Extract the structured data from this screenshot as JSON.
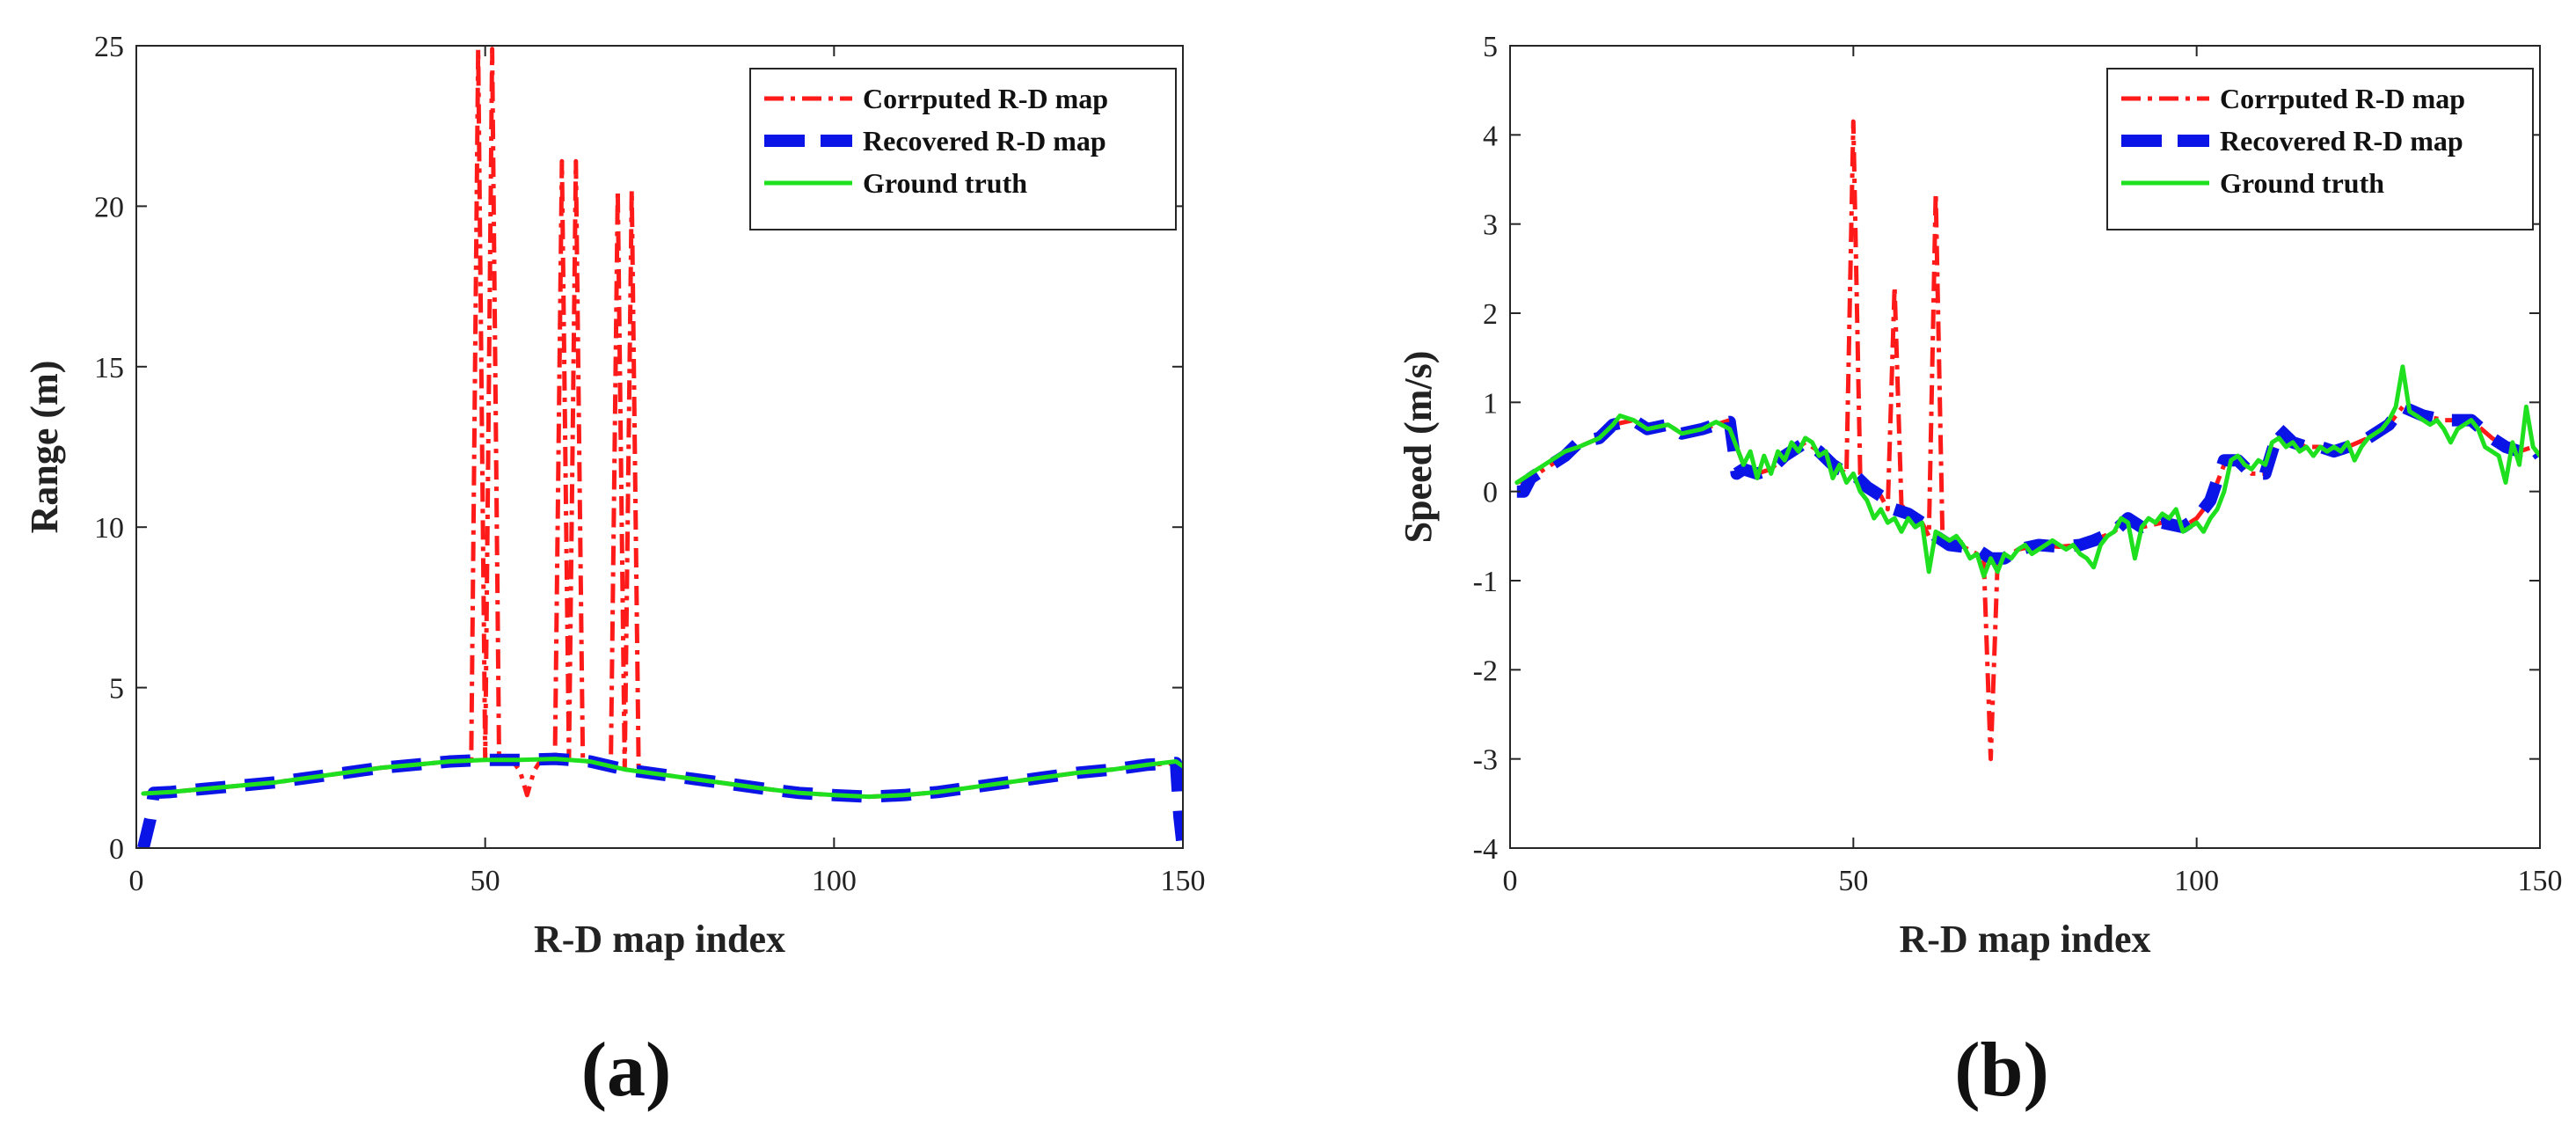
{
  "chart_data": [
    {
      "type": "line",
      "panel_label": "(a)",
      "xlabel": "R-D map index",
      "ylabel": "Range (m)",
      "xlim": [
        0,
        150
      ],
      "ylim": [
        0,
        25
      ],
      "xticks": [
        0,
        50,
        100,
        150
      ],
      "yticks": [
        0,
        5,
        10,
        15,
        20,
        25
      ],
      "legend_position": "top-right",
      "series": [
        {
          "name": "Corrputed R-D map",
          "color": "#ff1a1a",
          "style": "dash-dot",
          "x": [
            1,
            5,
            10,
            15,
            20,
            25,
            30,
            35,
            40,
            45,
            48,
            49,
            50,
            51,
            52,
            54,
            55,
            56,
            57,
            58,
            60,
            61,
            62,
            63,
            64,
            66,
            68,
            69,
            70,
            71,
            72,
            75,
            80,
            85,
            90,
            95,
            100,
            105,
            110,
            115,
            120,
            125,
            130,
            135,
            140,
            145,
            149,
            150
          ],
          "y": [
            1.7,
            1.75,
            1.85,
            1.95,
            2.05,
            2.2,
            2.35,
            2.5,
            2.6,
            2.7,
            2.72,
            24.9,
            2.75,
            24.9,
            2.75,
            2.7,
            2.4,
            1.65,
            2.4,
            2.75,
            2.78,
            21.4,
            2.78,
            21.4,
            2.75,
            2.6,
            2.5,
            20.5,
            2.45,
            20.5,
            2.4,
            2.3,
            2.15,
            2.0,
            1.85,
            1.72,
            1.65,
            1.6,
            1.65,
            1.75,
            1.9,
            2.05,
            2.2,
            2.35,
            2.45,
            2.6,
            2.65,
            2.5
          ]
        },
        {
          "name": "Recovered R-D map",
          "color": "#0a14e6",
          "style": "dashed-thick",
          "x": [
            1,
            2,
            2.5,
            5,
            10,
            15,
            20,
            25,
            30,
            35,
            40,
            45,
            50,
            55,
            60,
            65,
            70,
            75,
            80,
            85,
            90,
            95,
            100,
            105,
            110,
            115,
            120,
            125,
            130,
            135,
            140,
            145,
            149,
            149.5,
            150
          ],
          "y": [
            0,
            0.9,
            1.72,
            1.75,
            1.85,
            1.95,
            2.05,
            2.2,
            2.35,
            2.5,
            2.6,
            2.7,
            2.75,
            2.75,
            2.78,
            2.7,
            2.45,
            2.3,
            2.15,
            2.0,
            1.85,
            1.72,
            1.65,
            1.6,
            1.65,
            1.75,
            1.9,
            2.05,
            2.2,
            2.35,
            2.45,
            2.6,
            2.65,
            1.0,
            0
          ]
        },
        {
          "name": "Ground truth",
          "color": "#1fe01f",
          "style": "solid",
          "x": [
            1,
            5,
            10,
            15,
            20,
            25,
            30,
            35,
            40,
            45,
            50,
            55,
            60,
            65,
            70,
            75,
            80,
            85,
            90,
            95,
            100,
            105,
            110,
            115,
            120,
            125,
            130,
            135,
            140,
            145,
            149,
            150
          ],
          "y": [
            1.7,
            1.75,
            1.85,
            1.95,
            2.05,
            2.2,
            2.35,
            2.5,
            2.6,
            2.7,
            2.75,
            2.75,
            2.78,
            2.7,
            2.45,
            2.3,
            2.15,
            2.0,
            1.85,
            1.72,
            1.65,
            1.6,
            1.65,
            1.75,
            1.9,
            2.05,
            2.2,
            2.35,
            2.45,
            2.6,
            2.7,
            2.55
          ]
        }
      ]
    },
    {
      "type": "line",
      "panel_label": "(b)",
      "xlabel": "R-D map index",
      "ylabel": "Speed (m/s)",
      "xlim": [
        0,
        150
      ],
      "ylim": [
        -4,
        5
      ],
      "xticks": [
        0,
        50,
        100,
        150
      ],
      "yticks": [
        -4,
        -3,
        -2,
        -1,
        0,
        1,
        2,
        3,
        4,
        5
      ],
      "legend_position": "top-right",
      "series": [
        {
          "name": "Corrputed R-D map",
          "color": "#ff1a1a",
          "style": "dash-dot",
          "x": [
            1,
            3,
            5,
            8,
            10,
            13,
            15,
            18,
            20,
            23,
            25,
            28,
            30,
            32,
            33,
            34,
            36,
            38,
            40,
            43,
            45,
            47,
            48,
            49,
            50,
            51,
            52,
            54,
            55,
            56,
            57,
            58,
            60,
            61,
            62,
            63,
            64,
            66,
            68,
            69,
            70,
            71,
            72,
            74,
            77,
            80,
            83,
            85,
            88,
            90,
            92,
            95,
            98,
            100,
            102,
            104,
            106,
            108,
            110,
            112,
            114,
            116,
            118,
            120,
            122,
            125,
            128,
            130,
            133,
            136,
            140,
            143,
            145,
            147,
            149,
            150
          ],
          "y": [
            0.1,
            0.15,
            0.25,
            0.4,
            0.5,
            0.6,
            0.75,
            0.8,
            0.7,
            0.75,
            0.65,
            0.7,
            0.75,
            0.8,
            0.5,
            0.3,
            0.2,
            0.25,
            0.4,
            0.55,
            0.45,
            0.3,
            0.25,
            0.2,
            4.15,
            0.2,
            0.05,
            -0.05,
            -0.2,
            2.3,
            -0.15,
            -0.25,
            -0.35,
            -0.5,
            3.35,
            -0.55,
            -0.6,
            -0.62,
            -0.7,
            -0.8,
            -3.0,
            -0.8,
            -0.75,
            -0.65,
            -0.6,
            -0.62,
            -0.6,
            -0.55,
            -0.45,
            -0.3,
            -0.4,
            -0.35,
            -0.4,
            -0.3,
            -0.1,
            0.3,
            0.35,
            0.2,
            0.2,
            0.6,
            0.55,
            0.5,
            0.5,
            0.45,
            0.5,
            0.6,
            0.75,
            0.95,
            0.85,
            0.8,
            0.8,
            0.6,
            0.5,
            0.45,
            0.5,
            0.4
          ]
        },
        {
          "name": "Recovered R-D map",
          "color": "#0a14e6",
          "style": "dashed-thick",
          "x": [
            1,
            2,
            3,
            5,
            8,
            10,
            13,
            15,
            18,
            20,
            23,
            25,
            28,
            30,
            32,
            32.5,
            33,
            34,
            36,
            38,
            40,
            43,
            45,
            47,
            48,
            50,
            52,
            54,
            56,
            58,
            60,
            62,
            64,
            66,
            68,
            70,
            72,
            74,
            77,
            80,
            83,
            85,
            88,
            90,
            92,
            95,
            98,
            100,
            102,
            104,
            106,
            108,
            110,
            112,
            114,
            116,
            118,
            120,
            122,
            125,
            128,
            130,
            133,
            136,
            140,
            143,
            145,
            147,
            149,
            150
          ],
          "y": [
            0.0,
            0.0,
            0.15,
            0.25,
            0.4,
            0.55,
            0.6,
            0.75,
            0.8,
            0.7,
            0.75,
            0.65,
            0.7,
            0.75,
            0.78,
            0.5,
            0.2,
            0.25,
            0.2,
            0.25,
            0.4,
            0.55,
            0.45,
            0.3,
            0.25,
            0.2,
            0.05,
            -0.05,
            -0.2,
            -0.25,
            -0.35,
            -0.5,
            -0.6,
            -0.62,
            -0.65,
            -0.75,
            -0.75,
            -0.65,
            -0.6,
            -0.62,
            -0.6,
            -0.55,
            -0.45,
            -0.3,
            -0.4,
            -0.35,
            -0.4,
            -0.3,
            -0.1,
            0.35,
            0.35,
            0.2,
            0.2,
            0.7,
            0.55,
            0.5,
            0.5,
            0.45,
            0.5,
            0.6,
            0.75,
            0.95,
            0.85,
            0.8,
            0.8,
            0.6,
            0.5,
            0.45,
            0.5,
            0.4
          ]
        },
        {
          "name": "Ground truth",
          "color": "#1fe01f",
          "style": "solid",
          "x": [
            1,
            3,
            5,
            8,
            10,
            13,
            15,
            16,
            18,
            20,
            23,
            25,
            28,
            30,
            32,
            33,
            34,
            35,
            36,
            37,
            38,
            39,
            40,
            41,
            42,
            43,
            44,
            45,
            46,
            47,
            48,
            49,
            50,
            51,
            52,
            53,
            54,
            55,
            56,
            57,
            58,
            59,
            60,
            61,
            62,
            63,
            64,
            65,
            66,
            67,
            68,
            69,
            70,
            71,
            72,
            73,
            74,
            75,
            76,
            77,
            78,
            79,
            80,
            81,
            82,
            83,
            84,
            85,
            86,
            87,
            88,
            89,
            90,
            91,
            92,
            93,
            94,
            95,
            96,
            97,
            98,
            99,
            100,
            101,
            102,
            103,
            104,
            105,
            106,
            107,
            108,
            109,
            110,
            111,
            112,
            113,
            114,
            115,
            116,
            117,
            118,
            119,
            120,
            121,
            122,
            123,
            124,
            125,
            126,
            127,
            128,
            129,
            130,
            131,
            132,
            133,
            134,
            135,
            136,
            137,
            138,
            139,
            140,
            141,
            142,
            143,
            144,
            145,
            146,
            147,
            148,
            149,
            150
          ],
          "y": [
            0.1,
            0.2,
            0.3,
            0.45,
            0.5,
            0.6,
            0.75,
            0.85,
            0.8,
            0.7,
            0.75,
            0.65,
            0.7,
            0.78,
            0.7,
            0.5,
            0.3,
            0.45,
            0.15,
            0.4,
            0.2,
            0.45,
            0.35,
            0.55,
            0.45,
            0.6,
            0.55,
            0.4,
            0.45,
            0.15,
            0.3,
            0.1,
            0.2,
            0.0,
            -0.1,
            -0.3,
            -0.2,
            -0.35,
            -0.3,
            -0.45,
            -0.3,
            -0.4,
            -0.35,
            -0.9,
            -0.45,
            -0.5,
            -0.55,
            -0.5,
            -0.6,
            -0.75,
            -0.7,
            -0.95,
            -0.75,
            -0.9,
            -0.7,
            -0.75,
            -0.65,
            -0.6,
            -0.7,
            -0.65,
            -0.6,
            -0.55,
            -0.6,
            -0.65,
            -0.6,
            -0.7,
            -0.75,
            -0.85,
            -0.6,
            -0.5,
            -0.45,
            -0.3,
            -0.35,
            -0.75,
            -0.4,
            -0.3,
            -0.35,
            -0.25,
            -0.3,
            -0.2,
            -0.45,
            -0.4,
            -0.35,
            -0.45,
            -0.3,
            -0.2,
            0.0,
            0.35,
            0.4,
            0.3,
            0.25,
            0.35,
            0.3,
            0.55,
            0.6,
            0.5,
            0.55,
            0.45,
            0.5,
            0.4,
            0.5,
            0.45,
            0.5,
            0.45,
            0.55,
            0.35,
            0.5,
            0.6,
            0.65,
            0.7,
            0.8,
            0.95,
            1.4,
            0.9,
            0.85,
            0.8,
            0.75,
            0.8,
            0.7,
            0.55,
            0.7,
            0.75,
            0.8,
            0.7,
            0.5,
            0.45,
            0.4,
            0.1,
            0.55,
            0.3,
            0.95,
            0.5,
            0.4
          ]
        }
      ]
    }
  ]
}
